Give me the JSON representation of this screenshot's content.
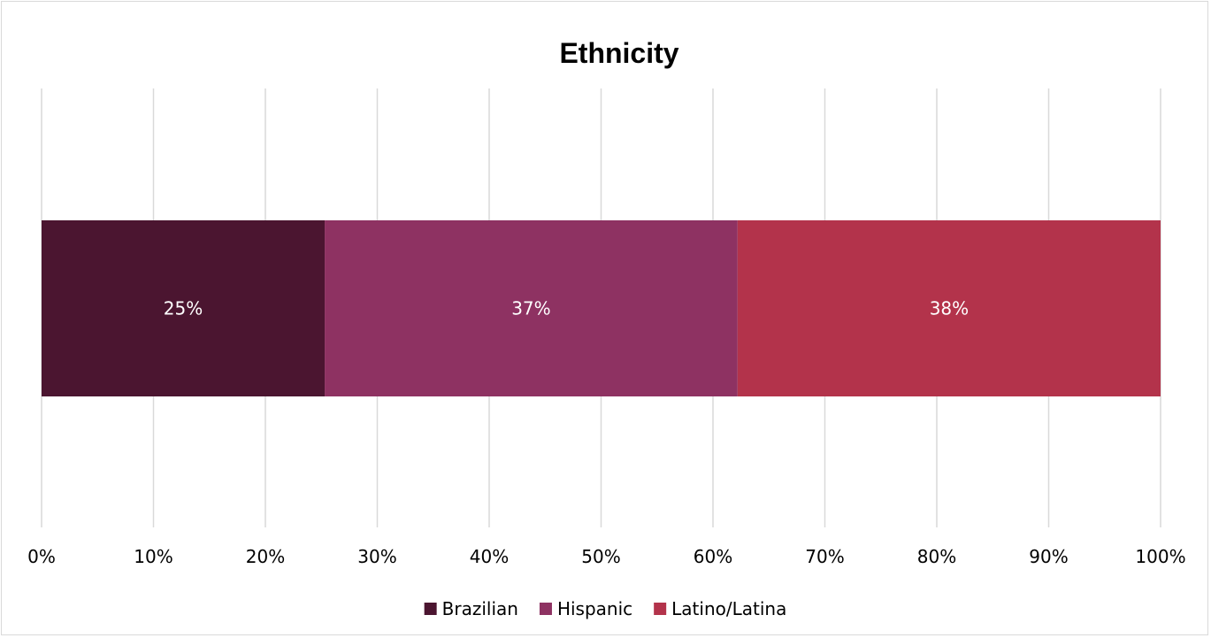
{
  "chart_data": {
    "type": "bar",
    "orientation": "horizontal",
    "stacked": "100%",
    "title": "Ethnicity",
    "xlabel": "",
    "ylabel": "",
    "xlim": [
      0,
      100
    ],
    "x_ticks": [
      "0%",
      "10%",
      "20%",
      "30%",
      "40%",
      "50%",
      "60%",
      "70%",
      "80%",
      "90%",
      "100%"
    ],
    "grid": true,
    "legend_position": "bottom",
    "series": [
      {
        "name": "Brazilian",
        "values": [
          25.3
        ],
        "label": "25%",
        "color": "#4b1530"
      },
      {
        "name": "Hispanic",
        "values": [
          36.9
        ],
        "label": "37%",
        "color": "#8e3262"
      },
      {
        "name": "Latino/Latina",
        "values": [
          37.8
        ],
        "label": "38%",
        "color": "#b3334b"
      }
    ]
  }
}
